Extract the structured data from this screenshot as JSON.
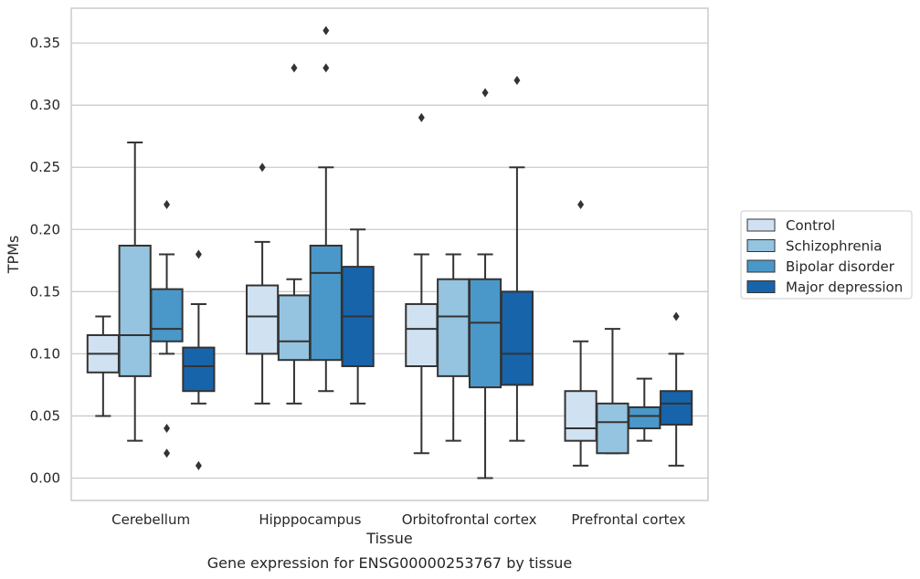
{
  "chart_data": {
    "type": "box",
    "title": "",
    "caption": "Gene expression for ENSG00000253767 by tissue",
    "xlabel": "Tissue",
    "ylabel": "TPMs",
    "ylim": [
      -0.018,
      0.378
    ],
    "yticks": [
      "0.00",
      "0.05",
      "0.10",
      "0.15",
      "0.20",
      "0.25",
      "0.30",
      "0.35"
    ],
    "ytick_values": [
      0,
      0.05,
      0.1,
      0.15,
      0.2,
      0.25,
      0.3,
      0.35
    ],
    "grid": "horizontal",
    "legend_position": "right",
    "categories": [
      "Cerebellum",
      "Hipppocampus",
      "Orbitofrontal cortex",
      "Prefrontal cortex"
    ],
    "series": [
      {
        "name": "Control",
        "color": "#d0e1f2",
        "boxes": [
          {
            "whisker_low": 0.05,
            "q1": 0.085,
            "median": 0.1,
            "q3": 0.115,
            "whisker_high": 0.13,
            "outliers": []
          },
          {
            "whisker_low": 0.06,
            "q1": 0.1,
            "median": 0.13,
            "q3": 0.155,
            "whisker_high": 0.19,
            "outliers": [
              0.25
            ]
          },
          {
            "whisker_low": 0.02,
            "q1": 0.09,
            "median": 0.12,
            "q3": 0.14,
            "whisker_high": 0.18,
            "outliers": [
              0.29
            ]
          },
          {
            "whisker_low": 0.01,
            "q1": 0.03,
            "median": 0.04,
            "q3": 0.07,
            "whisker_high": 0.11,
            "outliers": [
              0.22
            ]
          }
        ]
      },
      {
        "name": "Schizophrenia",
        "color": "#94c4df",
        "boxes": [
          {
            "whisker_low": 0.03,
            "q1": 0.082,
            "median": 0.115,
            "q3": 0.187,
            "whisker_high": 0.27,
            "outliers": []
          },
          {
            "whisker_low": 0.06,
            "q1": 0.095,
            "median": 0.11,
            "q3": 0.147,
            "whisker_high": 0.16,
            "outliers": [
              0.33
            ]
          },
          {
            "whisker_low": 0.03,
            "q1": 0.082,
            "median": 0.13,
            "q3": 0.16,
            "whisker_high": 0.18,
            "outliers": []
          },
          {
            "whisker_low": 0.02,
            "q1": 0.02,
            "median": 0.045,
            "q3": 0.06,
            "whisker_high": 0.12,
            "outliers": []
          }
        ]
      },
      {
        "name": "Bipolar disorder",
        "color": "#4a98c9",
        "boxes": [
          {
            "whisker_low": 0.1,
            "q1": 0.11,
            "median": 0.12,
            "q3": 0.152,
            "whisker_high": 0.18,
            "outliers": [
              0.22,
              0.04,
              0.02
            ]
          },
          {
            "whisker_low": 0.07,
            "q1": 0.095,
            "median": 0.165,
            "q3": 0.187,
            "whisker_high": 0.25,
            "outliers": [
              0.33,
              0.36
            ]
          },
          {
            "whisker_low": 0.0,
            "q1": 0.073,
            "median": 0.125,
            "q3": 0.16,
            "whisker_high": 0.18,
            "outliers": [
              0.31
            ]
          },
          {
            "whisker_low": 0.03,
            "q1": 0.04,
            "median": 0.05,
            "q3": 0.057,
            "whisker_high": 0.08,
            "outliers": []
          }
        ]
      },
      {
        "name": "Major depression",
        "color": "#1764ab",
        "boxes": [
          {
            "whisker_low": 0.06,
            "q1": 0.07,
            "median": 0.09,
            "q3": 0.105,
            "whisker_high": 0.14,
            "outliers": [
              0.18,
              0.01
            ]
          },
          {
            "whisker_low": 0.06,
            "q1": 0.09,
            "median": 0.13,
            "q3": 0.17,
            "whisker_high": 0.2,
            "outliers": []
          },
          {
            "whisker_low": 0.03,
            "q1": 0.075,
            "median": 0.1,
            "q3": 0.15,
            "whisker_high": 0.25,
            "outliers": [
              0.32
            ]
          },
          {
            "whisker_low": 0.01,
            "q1": 0.043,
            "median": 0.06,
            "q3": 0.07,
            "whisker_high": 0.1,
            "outliers": [
              0.13
            ]
          }
        ]
      }
    ]
  }
}
